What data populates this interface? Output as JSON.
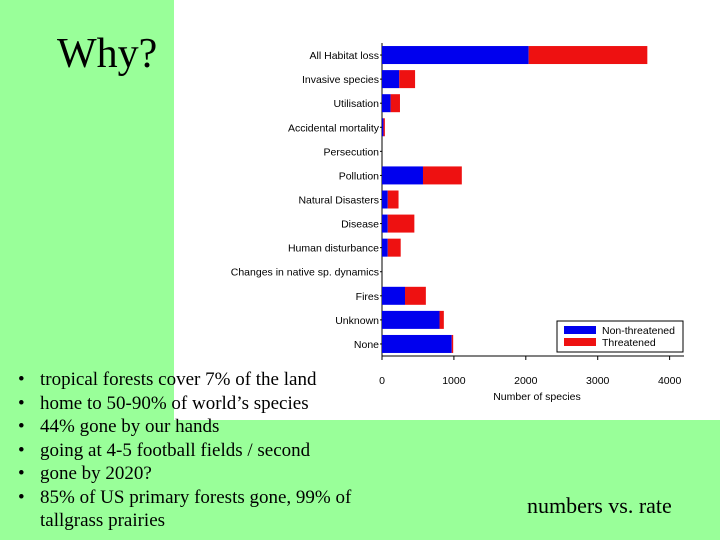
{
  "slide": {
    "title": "Why?",
    "bullets": [
      "tropical forests cover 7% of the land",
      "home to 50-90% of world’s species",
      "44% gone by our hands",
      "going at 4-5 football fields / second",
      "gone by 2020?",
      "85% of US primary forests gone, 99% of tallgrass prairies"
    ],
    "bullet_symbol": "•",
    "footnote": "numbers vs. rate"
  },
  "colors": {
    "background": "#99ff99",
    "non_threatened": "#0000ee",
    "threatened": "#ee1111"
  },
  "chart_data": {
    "type": "bar",
    "orientation": "horizontal",
    "stacked": true,
    "categories": [
      "All Habitat loss",
      "Invasive species",
      "Utilisation",
      "Accidental mortality",
      "Persecution",
      "Pollution",
      "Natural Disasters",
      "Disease",
      "Human disturbance",
      "Changes in native sp. dynamics",
      "Fires",
      "Unknown",
      "None"
    ],
    "series": [
      {
        "name": "Non-threatened",
        "color": "#0000ee",
        "values": [
          2040,
          240,
          120,
          20,
          0,
          570,
          80,
          80,
          80,
          0,
          320,
          800,
          970
        ]
      },
      {
        "name": "Threatened",
        "color": "#ee1111",
        "values": [
          1650,
          220,
          130,
          20,
          0,
          540,
          150,
          370,
          180,
          0,
          290,
          60,
          20
        ]
      }
    ],
    "xlabel": "Number of species",
    "xticks": [
      "0",
      "1000",
      "2000",
      "3000",
      "4000"
    ],
    "xlim": [
      0,
      4200
    ],
    "legend_position": "bottom-right",
    "grid": false
  }
}
